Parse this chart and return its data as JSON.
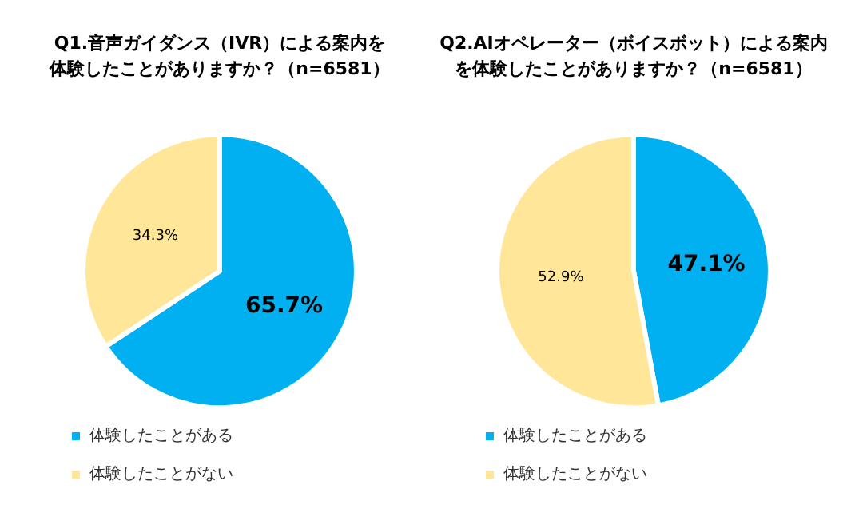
{
  "chart_data": [
    {
      "type": "pie",
      "title": "Q1.音声ガイダンス（IVR）による案内を体験したことがありますか？（n=6581）",
      "categories": [
        "体験したことがある",
        "体験したことがない"
      ],
      "values": [
        65.7,
        34.3
      ],
      "value_labels": [
        "65.7%",
        "34.3%"
      ],
      "colors": [
        "#00b0f0",
        "#ffe699"
      ],
      "legend": "bottom"
    },
    {
      "type": "pie",
      "title": "Q2.AIオペレーター（ボイスボット）による案内を体験したことがありますか？（n=6581）",
      "categories": [
        "体験したことがある",
        "体験したことがない"
      ],
      "values": [
        47.1,
        52.9
      ],
      "value_labels": [
        "47.1%",
        "52.9%"
      ],
      "colors": [
        "#00b0f0",
        "#ffe699"
      ],
      "legend": "bottom"
    }
  ]
}
